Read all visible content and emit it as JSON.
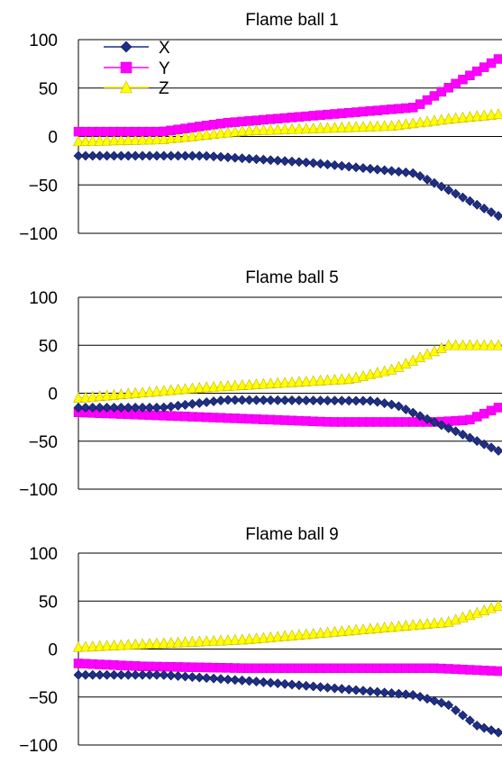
{
  "chart_data": [
    {
      "type": "line",
      "title": "Flame ball 1",
      "xlabel": "",
      "ylabel": "",
      "ylim": [
        -100,
        100
      ],
      "yticks": [
        "100",
        "50",
        "0",
        "−50",
        "−100"
      ],
      "grid": true,
      "legend": {
        "placement": "top-left"
      },
      "series": [
        {
          "name": "X",
          "color": "#1f2f86",
          "marker": "diamond",
          "anchors": [
            [
              0,
              -20
            ],
            [
              30,
              -20
            ],
            [
              55,
              -27
            ],
            [
              80,
              -38
            ],
            [
              88,
              -55
            ],
            [
              100,
              -82
            ]
          ]
        },
        {
          "name": "Y",
          "color": "#ff00ff",
          "marker": "square",
          "anchors": [
            [
              0,
              5
            ],
            [
              20,
              5
            ],
            [
              35,
              14
            ],
            [
              80,
              30
            ],
            [
              90,
              55
            ],
            [
              100,
              80
            ]
          ]
        },
        {
          "name": "Z",
          "color": "#ffff00",
          "marker": "triangle",
          "anchors": [
            [
              0,
              -5
            ],
            [
              20,
              -3
            ],
            [
              40,
              6
            ],
            [
              75,
              11
            ],
            [
              88,
              18
            ],
            [
              100,
              23
            ]
          ]
        }
      ]
    },
    {
      "type": "line",
      "title": "Flame ball 5",
      "xlabel": "",
      "ylabel": "",
      "ylim": [
        -100,
        100
      ],
      "yticks": [
        "100",
        "50",
        "0",
        "−50",
        "−100"
      ],
      "grid": true,
      "series": [
        {
          "name": "X",
          "color": "#1f2f86",
          "marker": "diamond",
          "anchors": [
            [
              0,
              -15
            ],
            [
              20,
              -15
            ],
            [
              35,
              -7
            ],
            [
              70,
              -8
            ],
            [
              76,
              -13
            ],
            [
              82,
              -25
            ],
            [
              90,
              -40
            ],
            [
              100,
              -60
            ]
          ]
        },
        {
          "name": "Y",
          "color": "#ff00ff",
          "marker": "square",
          "anchors": [
            [
              0,
              -20
            ],
            [
              30,
              -25
            ],
            [
              60,
              -30
            ],
            [
              85,
              -30
            ],
            [
              93,
              -28
            ],
            [
              100,
              -15
            ]
          ]
        },
        {
          "name": "Z",
          "color": "#ffff00",
          "marker": "triangle",
          "anchors": [
            [
              0,
              -5
            ],
            [
              30,
              6
            ],
            [
              65,
              15
            ],
            [
              75,
              25
            ],
            [
              88,
              50
            ],
            [
              100,
              50
            ]
          ]
        }
      ]
    },
    {
      "type": "line",
      "title": "Flame ball 9",
      "xlabel": "",
      "ylabel": "",
      "ylim": [
        -100,
        100
      ],
      "yticks": [
        "100",
        "50",
        "0",
        "−50",
        "−100"
      ],
      "grid": true,
      "series": [
        {
          "name": "X",
          "color": "#1f2f86",
          "marker": "diamond",
          "anchors": [
            [
              0,
              -27
            ],
            [
              20,
              -27
            ],
            [
              40,
              -33
            ],
            [
              80,
              -48
            ],
            [
              88,
              -58
            ],
            [
              95,
              -80
            ],
            [
              100,
              -87
            ]
          ]
        },
        {
          "name": "Y",
          "color": "#ff00ff",
          "marker": "square",
          "anchors": [
            [
              0,
              -15
            ],
            [
              15,
              -18
            ],
            [
              40,
              -20
            ],
            [
              85,
              -20
            ],
            [
              100,
              -23
            ]
          ]
        },
        {
          "name": "Z",
          "color": "#ffff00",
          "marker": "triangle",
          "anchors": [
            [
              0,
              2
            ],
            [
              40,
              10
            ],
            [
              80,
              25
            ],
            [
              88,
              28
            ],
            [
              100,
              45
            ]
          ]
        }
      ]
    }
  ]
}
